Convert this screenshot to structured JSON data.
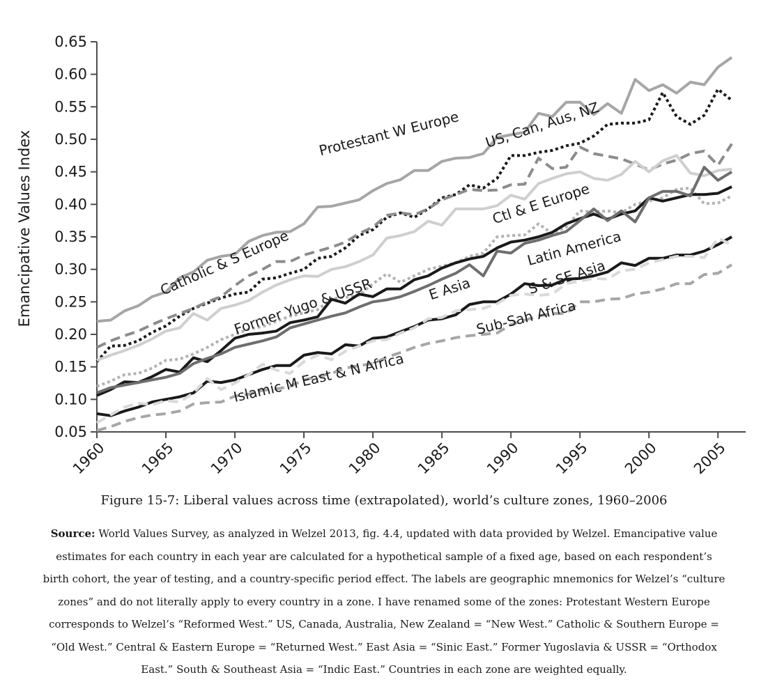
{
  "chart_data": {
    "type": "line",
    "ylabel": "Emancipative Values Index",
    "xlabel": "",
    "ylim": [
      0.05,
      0.65
    ],
    "xlim": [
      1960,
      2006
    ],
    "yticks": [
      "0.05",
      "0.10",
      "0.15",
      "0.20",
      "0.25",
      "0.30",
      "0.35",
      "0.40",
      "0.45",
      "0.50",
      "0.55",
      "0.60",
      "0.65"
    ],
    "xticks": [
      "1960",
      "1965",
      "1970",
      "1975",
      "1980",
      "1985",
      "1990",
      "1995",
      "2000",
      "2005"
    ],
    "series": [
      {
        "name": "Protestant W Europe",
        "color": "#a6a6a6",
        "dash": "solid",
        "x": [
          1960,
          1961,
          1962,
          1963,
          1964,
          1965,
          1966,
          1967,
          1968,
          1969,
          1970,
          1971,
          1972,
          1973,
          1974,
          1975,
          1976,
          1977,
          1978,
          1979,
          1980,
          1981,
          1982,
          1983,
          1984,
          1985,
          1986,
          1987,
          1988,
          1989,
          1990,
          1991,
          1992,
          1993,
          1994,
          1995,
          1996,
          1997,
          1998,
          1999,
          2000,
          2001,
          2002,
          2003,
          2004,
          2005,
          2006
        ],
        "values": [
          0.22,
          0.222,
          0.236,
          0.244,
          0.258,
          0.265,
          0.287,
          0.296,
          0.314,
          0.32,
          0.323,
          0.343,
          0.352,
          0.357,
          0.358,
          0.37,
          0.396,
          0.397,
          0.402,
          0.407,
          0.421,
          0.432,
          0.438,
          0.452,
          0.452,
          0.466,
          0.471,
          0.472,
          0.478,
          0.503,
          0.507,
          0.511,
          0.54,
          0.535,
          0.557,
          0.557,
          0.538,
          0.555,
          0.54,
          0.592,
          0.575,
          0.584,
          0.571,
          0.588,
          0.584,
          0.611,
          0.626
        ]
      },
      {
        "name": "US, Can, Aus, NZ",
        "color": "#1a1a1a",
        "dash": "dotted",
        "x": [
          1960,
          1961,
          1962,
          1963,
          1964,
          1965,
          1966,
          1967,
          1968,
          1969,
          1970,
          1971,
          1972,
          1973,
          1974,
          1975,
          1976,
          1977,
          1978,
          1979,
          1980,
          1981,
          1982,
          1983,
          1984,
          1985,
          1986,
          1987,
          1988,
          1989,
          1990,
          1991,
          1992,
          1993,
          1994,
          1995,
          1996,
          1997,
          1998,
          1999,
          2000,
          2001,
          2002,
          2003,
          2004,
          2005,
          2006
        ],
        "values": [
          0.158,
          0.182,
          0.183,
          0.19,
          0.203,
          0.213,
          0.228,
          0.24,
          0.248,
          0.256,
          0.262,
          0.265,
          0.285,
          0.287,
          0.294,
          0.3,
          0.317,
          0.32,
          0.333,
          0.352,
          0.361,
          0.38,
          0.387,
          0.38,
          0.393,
          0.41,
          0.415,
          0.43,
          0.425,
          0.44,
          0.475,
          0.475,
          0.48,
          0.483,
          0.49,
          0.494,
          0.505,
          0.523,
          0.525,
          0.525,
          0.53,
          0.572,
          0.535,
          0.523,
          0.537,
          0.577,
          0.56
        ]
      },
      {
        "name": "Catholic & S Europe",
        "color": "#8c8c8c",
        "dash": "dashed",
        "x": [
          1960,
          1961,
          1962,
          1963,
          1964,
          1965,
          1966,
          1967,
          1968,
          1969,
          1970,
          1971,
          1972,
          1973,
          1974,
          1975,
          1976,
          1977,
          1978,
          1979,
          1980,
          1981,
          1982,
          1983,
          1984,
          1985,
          1986,
          1987,
          1988,
          1989,
          1990,
          1991,
          1992,
          1993,
          1994,
          1995,
          1996,
          1997,
          1998,
          1999,
          2000,
          2001,
          2002,
          2003,
          2004,
          2005,
          2006
        ],
        "values": [
          0.18,
          0.19,
          0.198,
          0.205,
          0.215,
          0.224,
          0.232,
          0.24,
          0.25,
          0.258,
          0.275,
          0.29,
          0.3,
          0.312,
          0.312,
          0.322,
          0.328,
          0.334,
          0.342,
          0.355,
          0.365,
          0.383,
          0.387,
          0.384,
          0.393,
          0.407,
          0.415,
          0.423,
          0.421,
          0.422,
          0.43,
          0.431,
          0.471,
          0.455,
          0.457,
          0.488,
          0.478,
          0.474,
          0.47,
          0.462,
          0.453,
          0.462,
          0.468,
          0.478,
          0.482,
          0.46,
          0.493
        ]
      },
      {
        "name": "Ctl & E Europe",
        "color": "#cfcfcf",
        "dash": "solid",
        "x": [
          1960,
          1961,
          1962,
          1963,
          1964,
          1965,
          1966,
          1967,
          1968,
          1969,
          1970,
          1971,
          1972,
          1973,
          1974,
          1975,
          1976,
          1977,
          1978,
          1979,
          1980,
          1981,
          1982,
          1983,
          1984,
          1985,
          1986,
          1987,
          1988,
          1989,
          1990,
          1991,
          1992,
          1993,
          1994,
          1995,
          1996,
          1997,
          1998,
          1999,
          2000,
          2001,
          2002,
          2003,
          2004,
          2005,
          2006
        ],
        "values": [
          0.16,
          0.168,
          0.175,
          0.183,
          0.193,
          0.205,
          0.21,
          0.232,
          0.222,
          0.24,
          0.245,
          0.252,
          0.265,
          0.276,
          0.284,
          0.29,
          0.289,
          0.3,
          0.304,
          0.312,
          0.322,
          0.348,
          0.352,
          0.358,
          0.374,
          0.368,
          0.393,
          0.393,
          0.393,
          0.398,
          0.414,
          0.408,
          0.432,
          0.44,
          0.447,
          0.45,
          0.44,
          0.437,
          0.446,
          0.466,
          0.45,
          0.467,
          0.475,
          0.448,
          0.444,
          0.452,
          0.454
        ]
      },
      {
        "name": "Former Yugo & USSR",
        "color": "#b3b3b3",
        "dash": "dotted",
        "x": [
          1960,
          1961,
          1962,
          1963,
          1964,
          1965,
          1966,
          1967,
          1968,
          1969,
          1970,
          1971,
          1972,
          1973,
          1974,
          1975,
          1976,
          1977,
          1978,
          1979,
          1980,
          1981,
          1982,
          1983,
          1984,
          1985,
          1986,
          1987,
          1988,
          1989,
          1990,
          1991,
          1992,
          1993,
          1994,
          1995,
          1996,
          1997,
          1998,
          1999,
          2000,
          2001,
          2002,
          2003,
          2004,
          2005,
          2006
        ],
        "values": [
          0.12,
          0.128,
          0.138,
          0.14,
          0.148,
          0.16,
          0.162,
          0.17,
          0.18,
          0.192,
          0.2,
          0.208,
          0.212,
          0.22,
          0.228,
          0.233,
          0.238,
          0.255,
          0.257,
          0.26,
          0.278,
          0.293,
          0.28,
          0.29,
          0.3,
          0.305,
          0.31,
          0.32,
          0.325,
          0.35,
          0.352,
          0.353,
          0.37,
          0.355,
          0.365,
          0.39,
          0.388,
          0.39,
          0.387,
          0.4,
          0.405,
          0.41,
          0.423,
          0.425,
          0.401,
          0.402,
          0.413
        ]
      },
      {
        "name": "E Asia",
        "color": "#1a1a1a",
        "dash": "solid",
        "x": [
          1960,
          1961,
          1962,
          1963,
          1964,
          1965,
          1966,
          1967,
          1968,
          1969,
          1970,
          1971,
          1972,
          1973,
          1974,
          1975,
          1976,
          1977,
          1978,
          1979,
          1980,
          1981,
          1982,
          1983,
          1984,
          1985,
          1986,
          1987,
          1988,
          1989,
          1990,
          1991,
          1992,
          1993,
          1994,
          1995,
          1996,
          1997,
          1998,
          1999,
          2000,
          2001,
          2002,
          2003,
          2004,
          2005,
          2006
        ],
        "values": [
          0.106,
          0.115,
          0.127,
          0.126,
          0.135,
          0.146,
          0.142,
          0.164,
          0.158,
          0.175,
          0.194,
          0.2,
          0.202,
          0.205,
          0.218,
          0.222,
          0.227,
          0.254,
          0.248,
          0.262,
          0.258,
          0.27,
          0.27,
          0.284,
          0.29,
          0.302,
          0.31,
          0.316,
          0.32,
          0.333,
          0.342,
          0.345,
          0.35,
          0.357,
          0.37,
          0.378,
          0.385,
          0.377,
          0.385,
          0.39,
          0.41,
          0.405,
          0.41,
          0.415,
          0.415,
          0.417,
          0.427
        ]
      },
      {
        "name": "Latin America",
        "color": "#6e6e6e",
        "dash": "solid",
        "x": [
          1960,
          1961,
          1962,
          1963,
          1964,
          1965,
          1966,
          1967,
          1968,
          1969,
          1970,
          1971,
          1972,
          1973,
          1974,
          1975,
          1976,
          1977,
          1978,
          1979,
          1980,
          1981,
          1982,
          1983,
          1984,
          1985,
          1986,
          1987,
          1988,
          1989,
          1990,
          1991,
          1992,
          1993,
          1994,
          1995,
          1996,
          1997,
          1998,
          1999,
          2000,
          2001,
          2002,
          2003,
          2004,
          2005,
          2006
        ],
        "values": [
          0.11,
          0.118,
          0.122,
          0.126,
          0.13,
          0.134,
          0.14,
          0.155,
          0.163,
          0.17,
          0.18,
          0.185,
          0.19,
          0.196,
          0.21,
          0.216,
          0.222,
          0.228,
          0.233,
          0.242,
          0.25,
          0.253,
          0.258,
          0.266,
          0.275,
          0.285,
          0.294,
          0.307,
          0.29,
          0.328,
          0.325,
          0.34,
          0.345,
          0.352,
          0.358,
          0.375,
          0.393,
          0.375,
          0.39,
          0.373,
          0.41,
          0.42,
          0.42,
          0.413,
          0.457,
          0.437,
          0.45
        ]
      },
      {
        "name": "S & SE Asia",
        "color": "#1a1a1a",
        "dash": "solid",
        "x": [
          1960,
          1961,
          1962,
          1963,
          1964,
          1965,
          1966,
          1967,
          1968,
          1969,
          1970,
          1971,
          1972,
          1973,
          1974,
          1975,
          1976,
          1977,
          1978,
          1979,
          1980,
          1981,
          1982,
          1983,
          1984,
          1985,
          1986,
          1987,
          1988,
          1989,
          1990,
          1991,
          1992,
          1993,
          1994,
          1995,
          1996,
          1997,
          1998,
          1999,
          2000,
          2001,
          2002,
          2003,
          2004,
          2005,
          2006
        ],
        "values": [
          0.078,
          0.075,
          0.082,
          0.088,
          0.096,
          0.1,
          0.104,
          0.11,
          0.128,
          0.126,
          0.13,
          0.138,
          0.146,
          0.152,
          0.152,
          0.168,
          0.172,
          0.17,
          0.184,
          0.182,
          0.194,
          0.196,
          0.204,
          0.212,
          0.222,
          0.224,
          0.23,
          0.246,
          0.25,
          0.25,
          0.262,
          0.278,
          0.275,
          0.276,
          0.285,
          0.286,
          0.29,
          0.296,
          0.31,
          0.306,
          0.317,
          0.317,
          0.322,
          0.322,
          0.328,
          0.338,
          0.35
        ]
      },
      {
        "name": "Sub-Sah Africa",
        "color": "#d9d9d9",
        "dash": "dashed",
        "x": [
          1960,
          1961,
          1962,
          1963,
          1964,
          1965,
          1966,
          1967,
          1968,
          1969,
          1970,
          1971,
          1972,
          1973,
          1974,
          1975,
          1976,
          1977,
          1978,
          1979,
          1980,
          1981,
          1982,
          1983,
          1984,
          1985,
          1986,
          1987,
          1988,
          1989,
          1990,
          1991,
          1992,
          1993,
          1994,
          1995,
          1996,
          1997,
          1998,
          1999,
          2000,
          2001,
          2002,
          2003,
          2004,
          2005,
          2006
        ],
        "values": [
          0.064,
          0.076,
          0.088,
          0.094,
          0.092,
          0.098,
          0.096,
          0.11,
          0.132,
          0.115,
          0.125,
          0.138,
          0.154,
          0.145,
          0.14,
          0.158,
          0.168,
          0.161,
          0.174,
          0.182,
          0.19,
          0.192,
          0.202,
          0.21,
          0.224,
          0.226,
          0.236,
          0.238,
          0.24,
          0.247,
          0.26,
          0.262,
          0.26,
          0.262,
          0.278,
          0.282,
          0.286,
          0.285,
          0.298,
          0.3,
          0.31,
          0.315,
          0.32,
          0.32,
          0.318,
          0.348,
          0.338
        ]
      },
      {
        "name": "Islamic M East & N Africa",
        "color": "#a6a6a6",
        "dash": "dashed",
        "x": [
          1960,
          1961,
          1962,
          1963,
          1964,
          1965,
          1966,
          1967,
          1968,
          1969,
          1970,
          1971,
          1972,
          1973,
          1974,
          1975,
          1976,
          1977,
          1978,
          1979,
          1980,
          1981,
          1982,
          1983,
          1984,
          1985,
          1986,
          1987,
          1988,
          1989,
          1990,
          1991,
          1992,
          1993,
          1994,
          1995,
          1996,
          1997,
          1998,
          1999,
          2000,
          2001,
          2002,
          2003,
          2004,
          2005,
          2006
        ],
        "values": [
          0.052,
          0.058,
          0.066,
          0.072,
          0.076,
          0.078,
          0.082,
          0.093,
          0.095,
          0.096,
          0.105,
          0.108,
          0.114,
          0.116,
          0.12,
          0.13,
          0.135,
          0.14,
          0.148,
          0.152,
          0.155,
          0.165,
          0.172,
          0.18,
          0.186,
          0.19,
          0.195,
          0.198,
          0.2,
          0.202,
          0.215,
          0.222,
          0.228,
          0.232,
          0.232,
          0.25,
          0.25,
          0.254,
          0.255,
          0.262,
          0.265,
          0.27,
          0.278,
          0.278,
          0.292,
          0.294,
          0.307
        ]
      }
    ],
    "annotations": [
      {
        "text": "Protestant W Europe",
        "x": 1976.2,
        "y": 0.475,
        "angle": -14
      },
      {
        "text": "US, Can, Aus, NZ",
        "x": 1988.3,
        "y": 0.487,
        "angle": -18
      },
      {
        "text": "Catholic & S Europe",
        "x": 1964.8,
        "y": 0.26,
        "angle": -24
      },
      {
        "text": "Ctl & E Europe",
        "x": 1988.8,
        "y": 0.37,
        "angle": -18
      },
      {
        "text": "Former Yugo & USSR",
        "x": 1970.1,
        "y": 0.2,
        "angle": -19
      },
      {
        "text": "E Asia",
        "x": 1984.2,
        "y": 0.253,
        "angle": -18
      },
      {
        "text": "Latin America",
        "x": 1991.3,
        "y": 0.306,
        "angle": -15
      },
      {
        "text": "S & SE Asia",
        "x": 1991.4,
        "y": 0.262,
        "angle": -18
      },
      {
        "text": "Sub-Sah Africa",
        "x": 1987.6,
        "y": 0.2,
        "angle": -14
      },
      {
        "text": "Islamic M East & N Africa",
        "x": 1970.0,
        "y": 0.096,
        "angle": -13
      }
    ]
  },
  "caption": "Figure 15-7: Liberal values across time (extrapolated), world’s culture zones, 1960–2006",
  "source": {
    "label": "Source:",
    "text": " World Values Survey, as analyzed in Welzel 2013, fig. 4.4, updated with data provided by Welzel. Emancipative value estimates for each country in each year are calculated for a hypothetical sample of a fixed age, based on each respondent’s birth cohort, the year of testing, and a country-specific period effect. The labels are geographic mnemonics for Welzel’s “culture zones” and do not literally apply to every country in a zone. I have renamed some of the zones: Protestant Western Europe corresponds to Welzel’s “Reformed West.” US, Canada, Australia, New Zealand = “New West.” Catholic & Southern Europe = “Old West.” Central & Eastern Europe = “Returned West.” East Asia = “Sinic East.” Former Yugoslavia & USSR = “Orthodox East.” South & Southeast Asia = “Indic East.” Countries in each zone are weighted equally."
  }
}
